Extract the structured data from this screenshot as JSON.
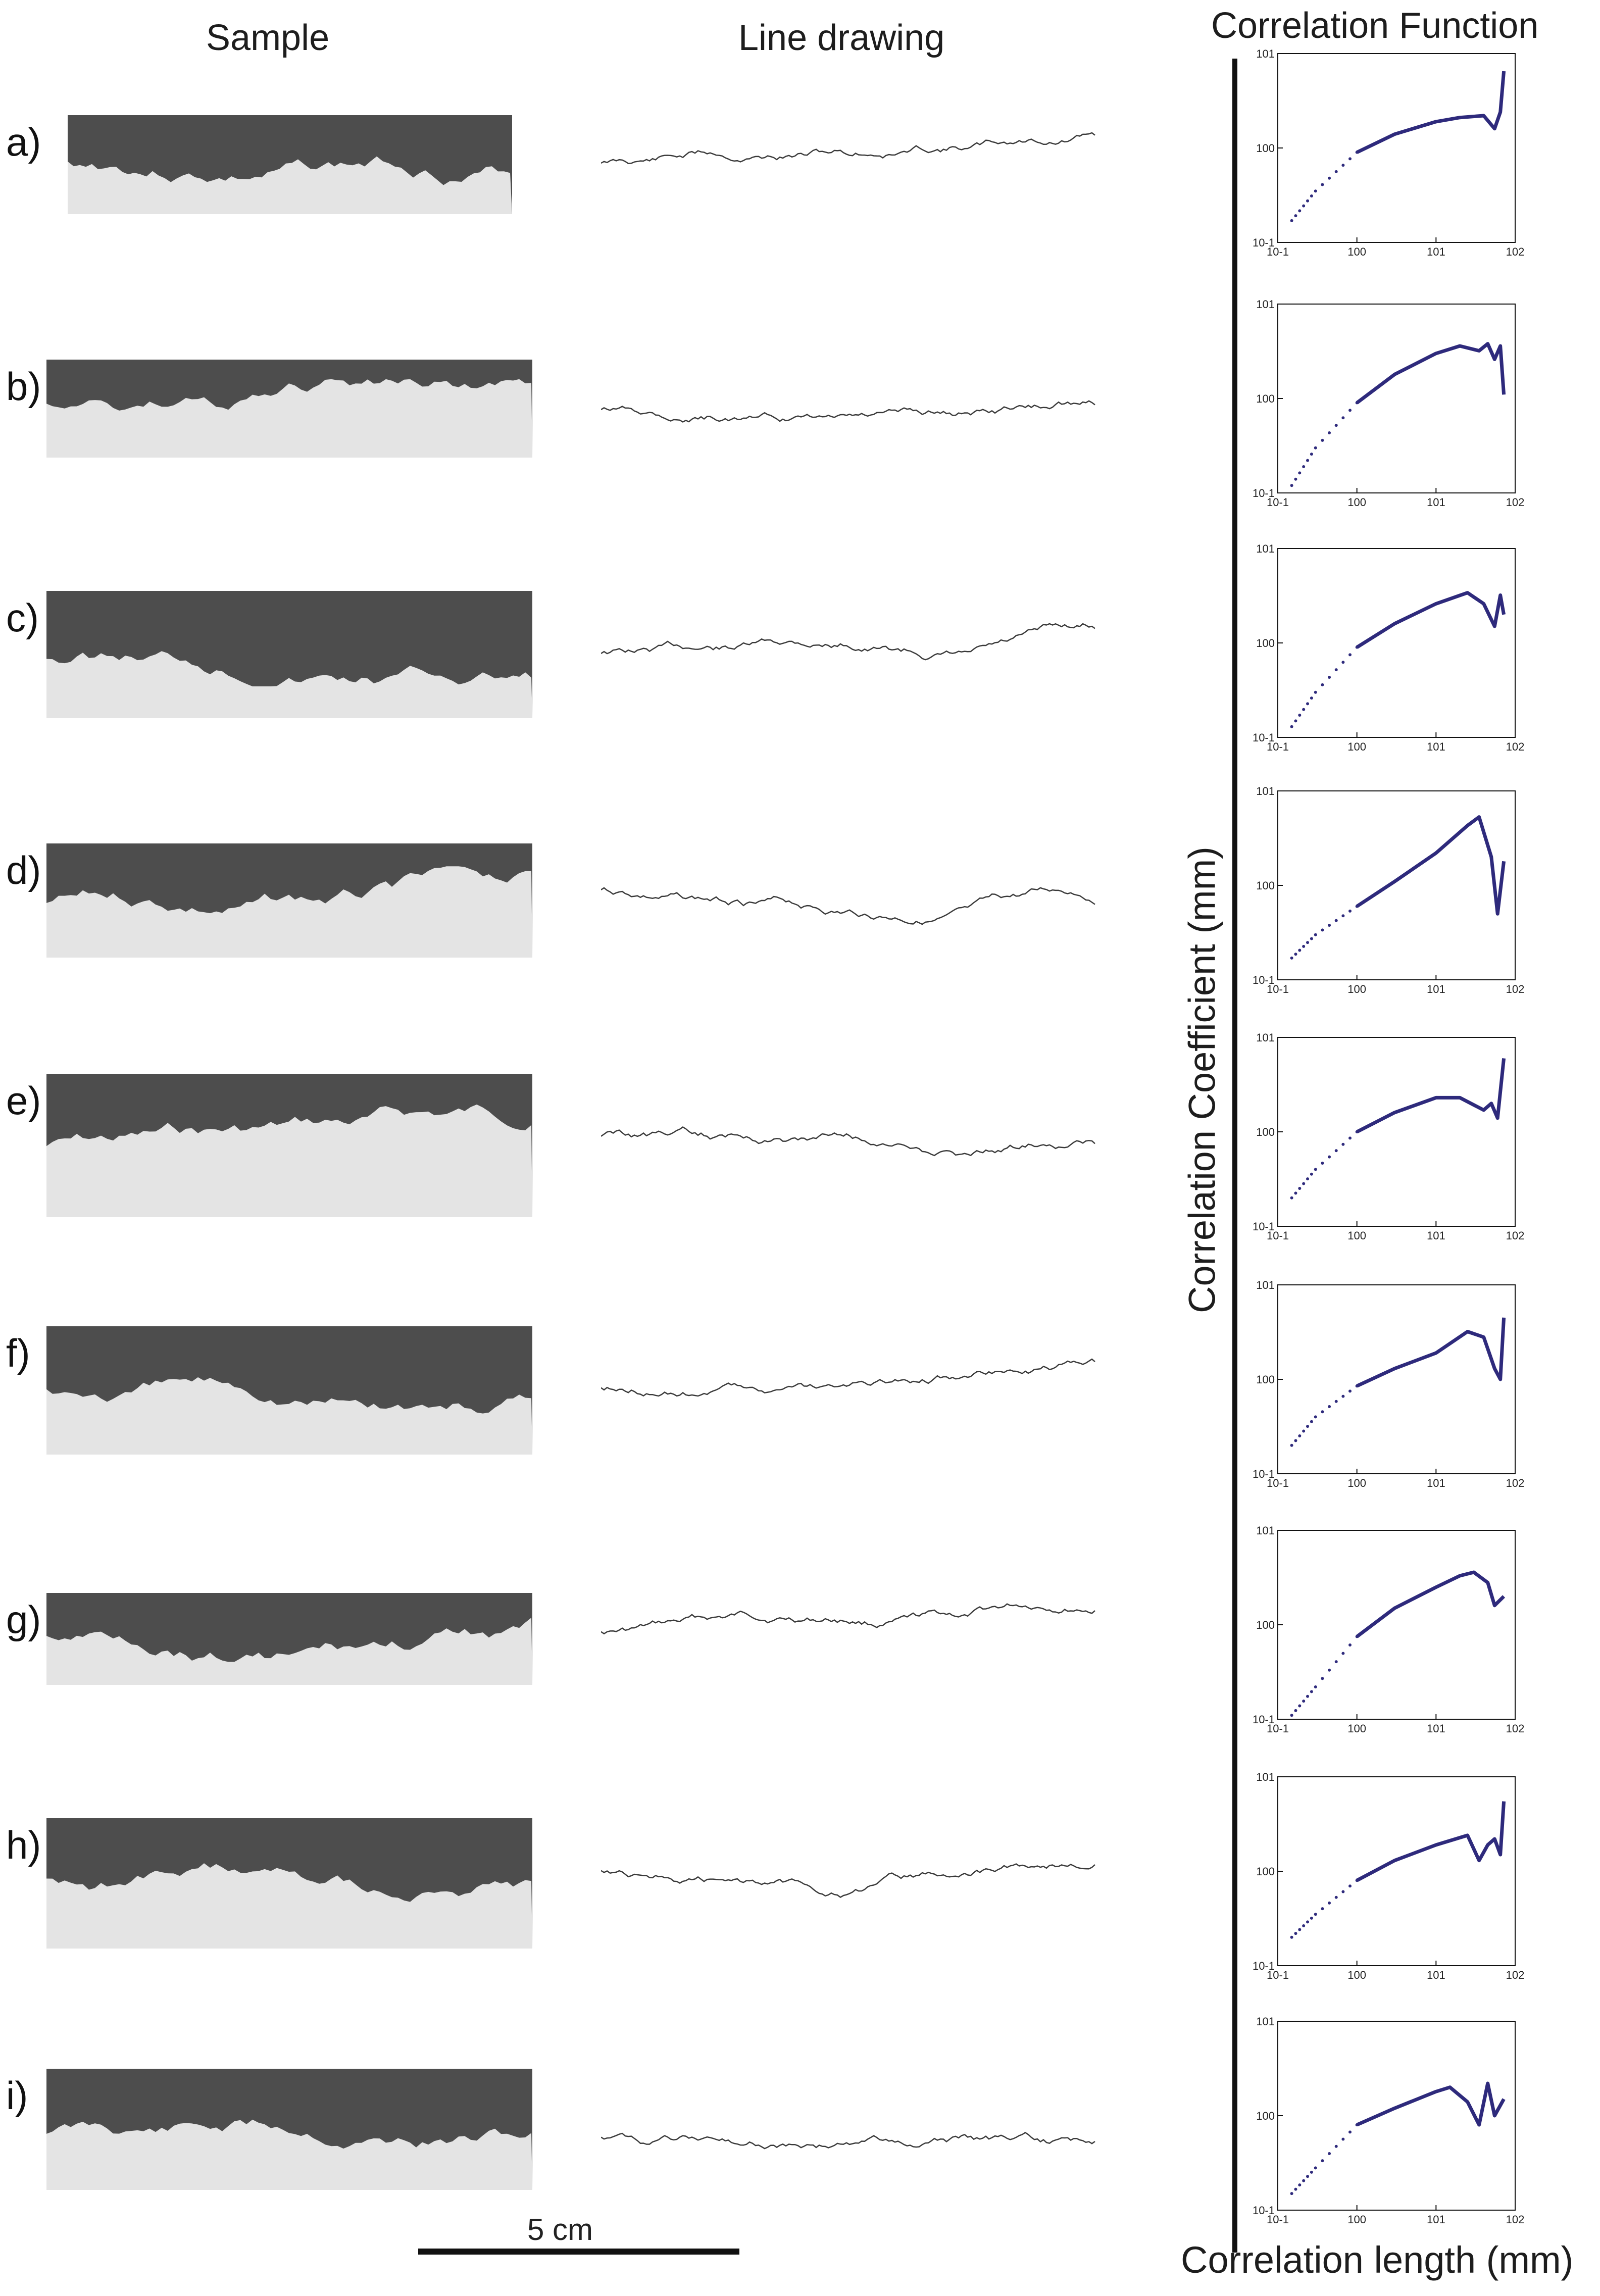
{
  "headers": {
    "sample": "Sample",
    "line_drawing": "Line drawing",
    "correlation": "Correlation Function"
  },
  "scale_label": "5 cm",
  "colors": {
    "curve": "#2e2a7c",
    "line": "#3a3a3a",
    "dark": "#4d4d4d",
    "light": "#e4e4e4"
  },
  "rows": [
    {
      "label": "a)"
    },
    {
      "label": "b)"
    },
    {
      "label": "c)"
    },
    {
      "label": "d)"
    },
    {
      "label": "e)"
    },
    {
      "label": "f)"
    },
    {
      "label": "g)"
    },
    {
      "label": "h)"
    },
    {
      "label": "i)"
    }
  ],
  "chart_data": {
    "type": "line",
    "scale": "log-log",
    "title": "Correlation Function",
    "xlabel": "Correlation length (mm)",
    "ylabel": "Correlation Coefficient (mm)",
    "xticks": [
      "10-1",
      "100",
      "101",
      "102"
    ],
    "yticks": [
      "10-1",
      "100",
      "101"
    ],
    "xlim": [
      0.1,
      100
    ],
    "grid": false,
    "panels": [
      {
        "label": "a)",
        "x": [
          0.15,
          0.3,
          1,
          3,
          10,
          20,
          40,
          55,
          65,
          72
        ],
        "y": [
          0.17,
          0.35,
          0.9,
          1.4,
          1.9,
          2.1,
          2.2,
          1.6,
          2.4,
          6.5
        ]
      },
      {
        "label": "b)",
        "x": [
          0.15,
          0.3,
          1,
          3,
          10,
          20,
          35,
          45,
          55,
          65,
          72
        ],
        "y": [
          0.12,
          0.3,
          0.9,
          1.8,
          3.0,
          3.6,
          3.2,
          3.8,
          2.6,
          3.6,
          1.1
        ]
      },
      {
        "label": "c)",
        "x": [
          0.15,
          0.3,
          1,
          3,
          10,
          25,
          40,
          55,
          65,
          72
        ],
        "y": [
          0.13,
          0.3,
          0.9,
          1.6,
          2.6,
          3.4,
          2.6,
          1.5,
          3.2,
          2.0
        ]
      },
      {
        "label": "d)",
        "x": [
          0.15,
          0.3,
          1,
          3,
          10,
          25,
          35,
          50,
          60,
          72
        ],
        "y": [
          0.17,
          0.3,
          0.6,
          1.1,
          2.2,
          4.3,
          5.3,
          2.0,
          0.5,
          1.8
        ]
      },
      {
        "label": "e)",
        "x": [
          0.15,
          0.3,
          1,
          3,
          10,
          20,
          40,
          50,
          60,
          72
        ],
        "y": [
          0.2,
          0.4,
          1.0,
          1.6,
          2.3,
          2.3,
          1.7,
          2.0,
          1.4,
          6.0
        ]
      },
      {
        "label": "f)",
        "x": [
          0.15,
          0.3,
          1,
          3,
          10,
          25,
          40,
          55,
          65,
          72
        ],
        "y": [
          0.2,
          0.4,
          0.85,
          1.3,
          1.9,
          3.2,
          2.8,
          1.3,
          1.0,
          4.5
        ]
      },
      {
        "label": "g)",
        "x": [
          0.15,
          0.3,
          1,
          3,
          10,
          20,
          30,
          45,
          55,
          72
        ],
        "y": [
          0.11,
          0.22,
          0.75,
          1.5,
          2.5,
          3.3,
          3.6,
          2.8,
          1.6,
          2.0
        ]
      },
      {
        "label": "h)",
        "x": [
          0.15,
          0.3,
          1,
          3,
          10,
          25,
          35,
          45,
          55,
          65,
          72
        ],
        "y": [
          0.2,
          0.35,
          0.8,
          1.3,
          1.9,
          2.4,
          1.3,
          1.9,
          2.2,
          1.5,
          5.5
        ]
      },
      {
        "label": "i)",
        "x": [
          0.15,
          0.3,
          1,
          3,
          10,
          15,
          25,
          35,
          45,
          55,
          72
        ],
        "y": [
          0.15,
          0.28,
          0.8,
          1.2,
          1.8,
          2.0,
          1.4,
          0.8,
          2.2,
          1.0,
          1.5
        ]
      }
    ]
  }
}
